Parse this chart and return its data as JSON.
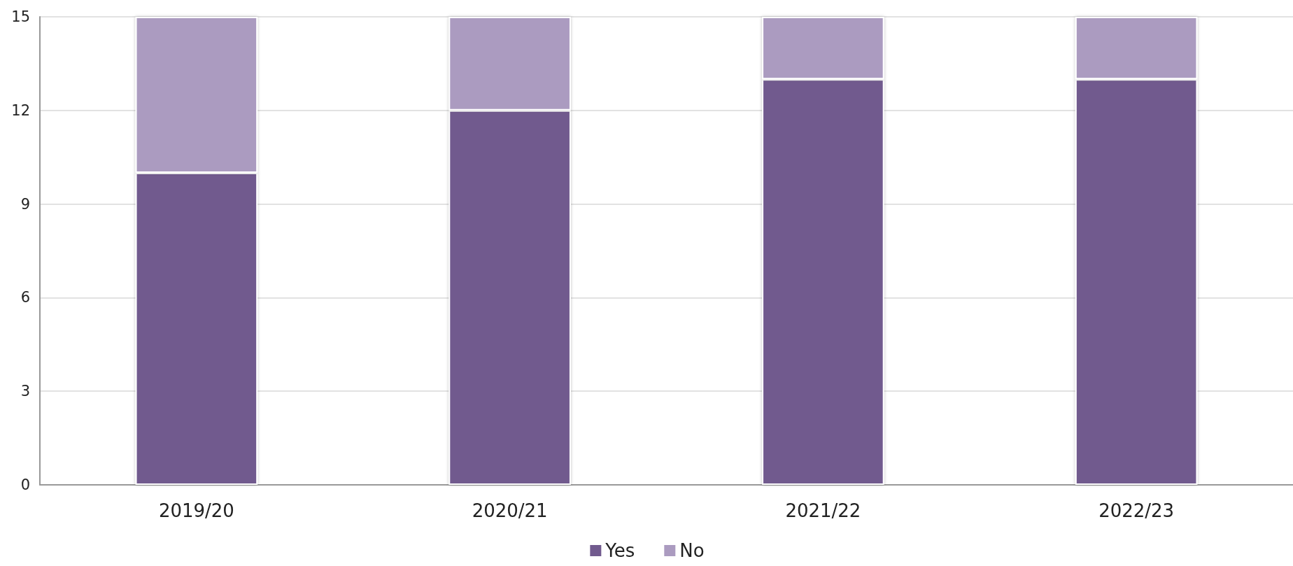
{
  "chart_data": {
    "type": "bar",
    "stacked": true,
    "categories": [
      "2019/20",
      "2020/21",
      "2021/22",
      "2022/23"
    ],
    "series": [
      {
        "name": "Yes",
        "color": "#715a8e",
        "values": [
          10,
          12,
          13,
          13
        ]
      },
      {
        "name": "No",
        "color": "#ab9bc0",
        "values": [
          5,
          3,
          2,
          2
        ]
      }
    ],
    "ylim": [
      0,
      15
    ],
    "yticks": [
      0,
      3,
      6,
      9,
      12,
      15
    ],
    "grid": "y",
    "legend": "bottom"
  }
}
